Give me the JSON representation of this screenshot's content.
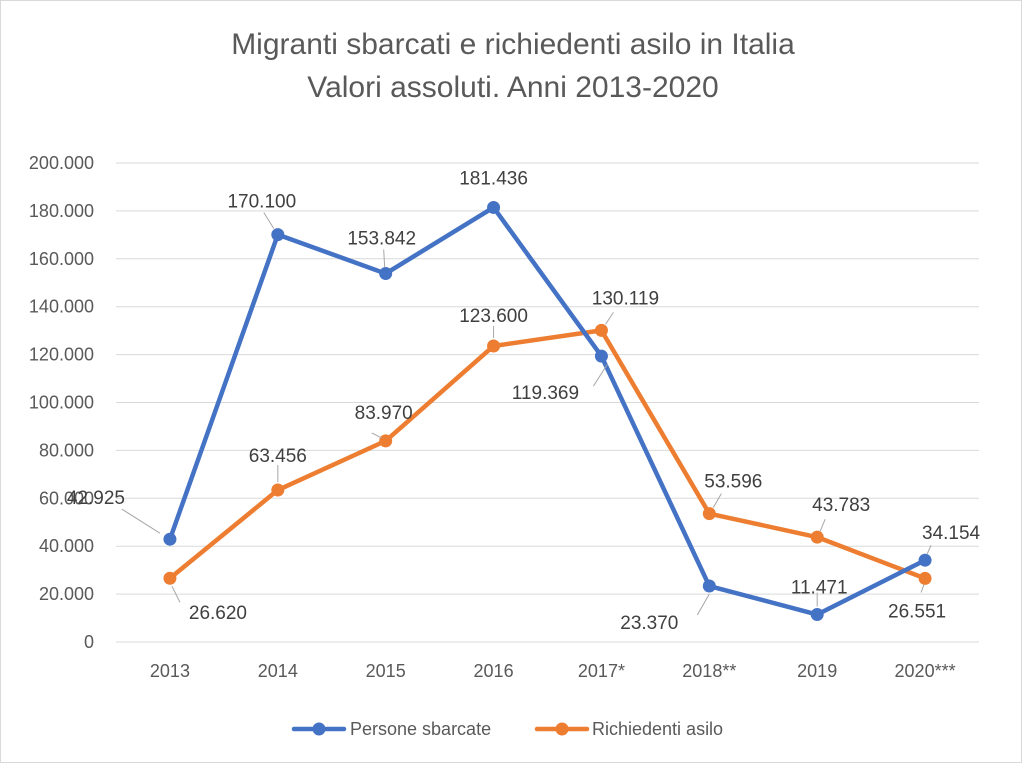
{
  "chart_data": {
    "type": "line",
    "title": "Migranti sbarcati e richiedenti asilo in Italia",
    "subtitle": "Valori assoluti. Anni 2013-2020",
    "categories": [
      "2013",
      "2014",
      "2015",
      "2016",
      "2017*",
      "2018**",
      "2019",
      "2020***"
    ],
    "ylim": [
      0,
      200000
    ],
    "y_ticks": [
      "0",
      "20.000",
      "40.000",
      "60.000",
      "80.000",
      "100.000",
      "120.000",
      "140.000",
      "160.000",
      "180.000",
      "200.000"
    ],
    "grid": true,
    "legend_position": "bottom",
    "series": [
      {
        "name": "Persone sbarcate",
        "color": "#4472c4",
        "values": [
          42925,
          170100,
          153842,
          181436,
          119369,
          23370,
          11471,
          34154
        ],
        "labels": [
          "42.925",
          "170.100",
          "153.842",
          "181.436",
          "119.369",
          "23.370",
          "11.471",
          "34.154"
        ]
      },
      {
        "name": "Richiedenti asilo",
        "color": "#ed7d31",
        "values": [
          26620,
          63456,
          83970,
          123600,
          130119,
          53596,
          43783,
          26551
        ],
        "labels": [
          "26.620",
          "63.456",
          "83.970",
          "123.600",
          "130.119",
          "53.596",
          "43.783",
          "26.551"
        ]
      }
    ]
  }
}
